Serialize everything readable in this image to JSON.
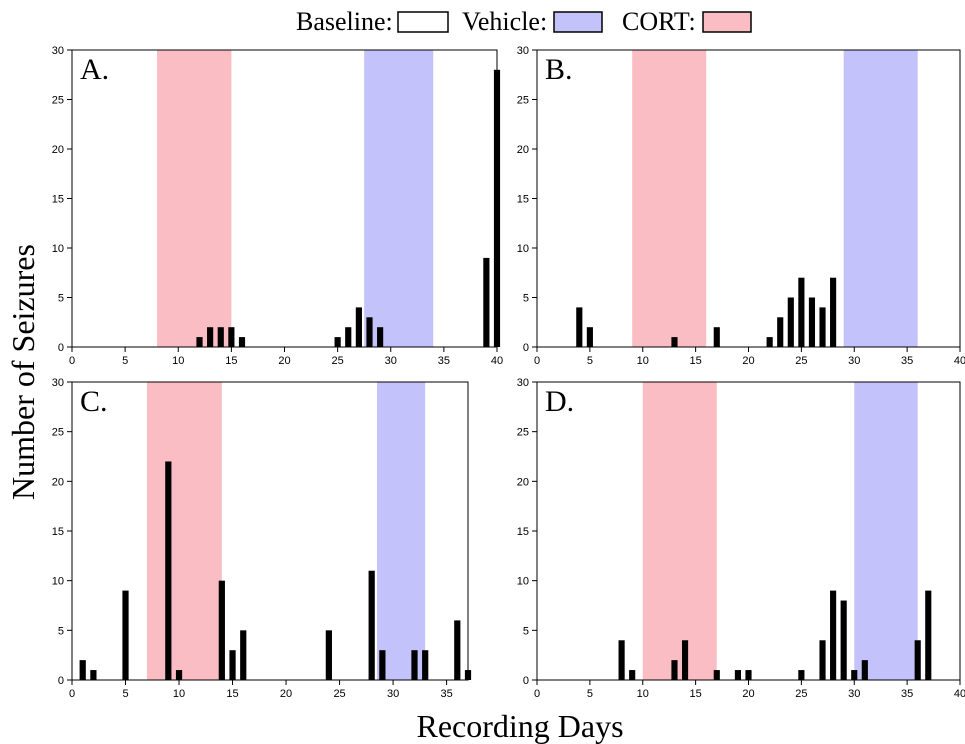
{
  "legend": {
    "items": [
      {
        "label": "Baseline:",
        "color": "#ffffff"
      },
      {
        "label": "Vehicle:",
        "color": "#c4c2fa"
      },
      {
        "label": "CORT:",
        "color": "#fbbdc4"
      }
    ]
  },
  "ylabel": "Number of Seizures",
  "xlabel": "Recording Days",
  "chart_data": [
    {
      "type": "bar",
      "panel_label": "A.",
      "xlim": [
        0,
        40
      ],
      "ylim": [
        0,
        30
      ],
      "xticks": [
        0,
        5,
        10,
        15,
        20,
        25,
        30,
        35,
        40
      ],
      "yticks": [
        0,
        5,
        10,
        15,
        20,
        25,
        30
      ],
      "shaded": [
        {
          "name": "CORT",
          "start": 8,
          "end": 15
        },
        {
          "name": "Vehicle",
          "start": 27.5,
          "end": 34
        }
      ],
      "series": [
        {
          "x": [
            12,
            13,
            14,
            15,
            16,
            25,
            26,
            27,
            28,
            29,
            39,
            40
          ],
          "values": [
            1,
            2,
            2,
            2,
            1,
            1,
            2,
            4,
            3,
            2,
            9,
            28
          ]
        }
      ]
    },
    {
      "type": "bar",
      "panel_label": "B.",
      "xlim": [
        0,
        40
      ],
      "ylim": [
        0,
        30
      ],
      "xticks": [
        0,
        5,
        10,
        15,
        20,
        25,
        30,
        35,
        40
      ],
      "yticks": [
        0,
        5,
        10,
        15,
        20,
        25,
        30
      ],
      "shaded": [
        {
          "name": "CORT",
          "start": 9,
          "end": 16
        },
        {
          "name": "Vehicle",
          "start": 29,
          "end": 36
        }
      ],
      "series": [
        {
          "x": [
            4,
            5,
            13,
            17,
            22,
            23,
            24,
            25,
            26,
            27,
            28
          ],
          "values": [
            4,
            2,
            1,
            2,
            1,
            3,
            5,
            7,
            5,
            4,
            7
          ]
        }
      ]
    },
    {
      "type": "bar",
      "panel_label": "C.",
      "xlim": [
        0,
        37
      ],
      "ylim": [
        0,
        30
      ],
      "xticks": [
        0,
        5,
        10,
        15,
        20,
        25,
        30,
        35
      ],
      "yticks": [
        0,
        5,
        10,
        15,
        20,
        25,
        30
      ],
      "shaded": [
        {
          "name": "CORT",
          "start": 7,
          "end": 14
        },
        {
          "name": "Vehicle",
          "start": 28.5,
          "end": 33
        }
      ],
      "series": [
        {
          "x": [
            1,
            2,
            5,
            9,
            10,
            14,
            15,
            16,
            24,
            28,
            29,
            32,
            33,
            36,
            37
          ],
          "values": [
            2,
            1,
            9,
            22,
            1,
            10,
            3,
            5,
            5,
            11,
            3,
            3,
            3,
            6,
            1
          ]
        }
      ]
    },
    {
      "type": "bar",
      "panel_label": "D.",
      "xlim": [
        0,
        40
      ],
      "ylim": [
        0,
        30
      ],
      "xticks": [
        0,
        5,
        10,
        15,
        20,
        25,
        30,
        35,
        40
      ],
      "yticks": [
        0,
        5,
        10,
        15,
        20,
        25,
        30
      ],
      "shaded": [
        {
          "name": "CORT",
          "start": 10,
          "end": 17
        },
        {
          "name": "Vehicle",
          "start": 30,
          "end": 36
        }
      ],
      "series": [
        {
          "x": [
            8,
            9,
            13,
            14,
            17,
            19,
            20,
            25,
            27,
            28,
            29,
            30,
            31,
            36,
            37
          ],
          "values": [
            4,
            1,
            2,
            4,
            1,
            1,
            1,
            1,
            4,
            9,
            8,
            1,
            2,
            4,
            9
          ]
        }
      ]
    }
  ]
}
